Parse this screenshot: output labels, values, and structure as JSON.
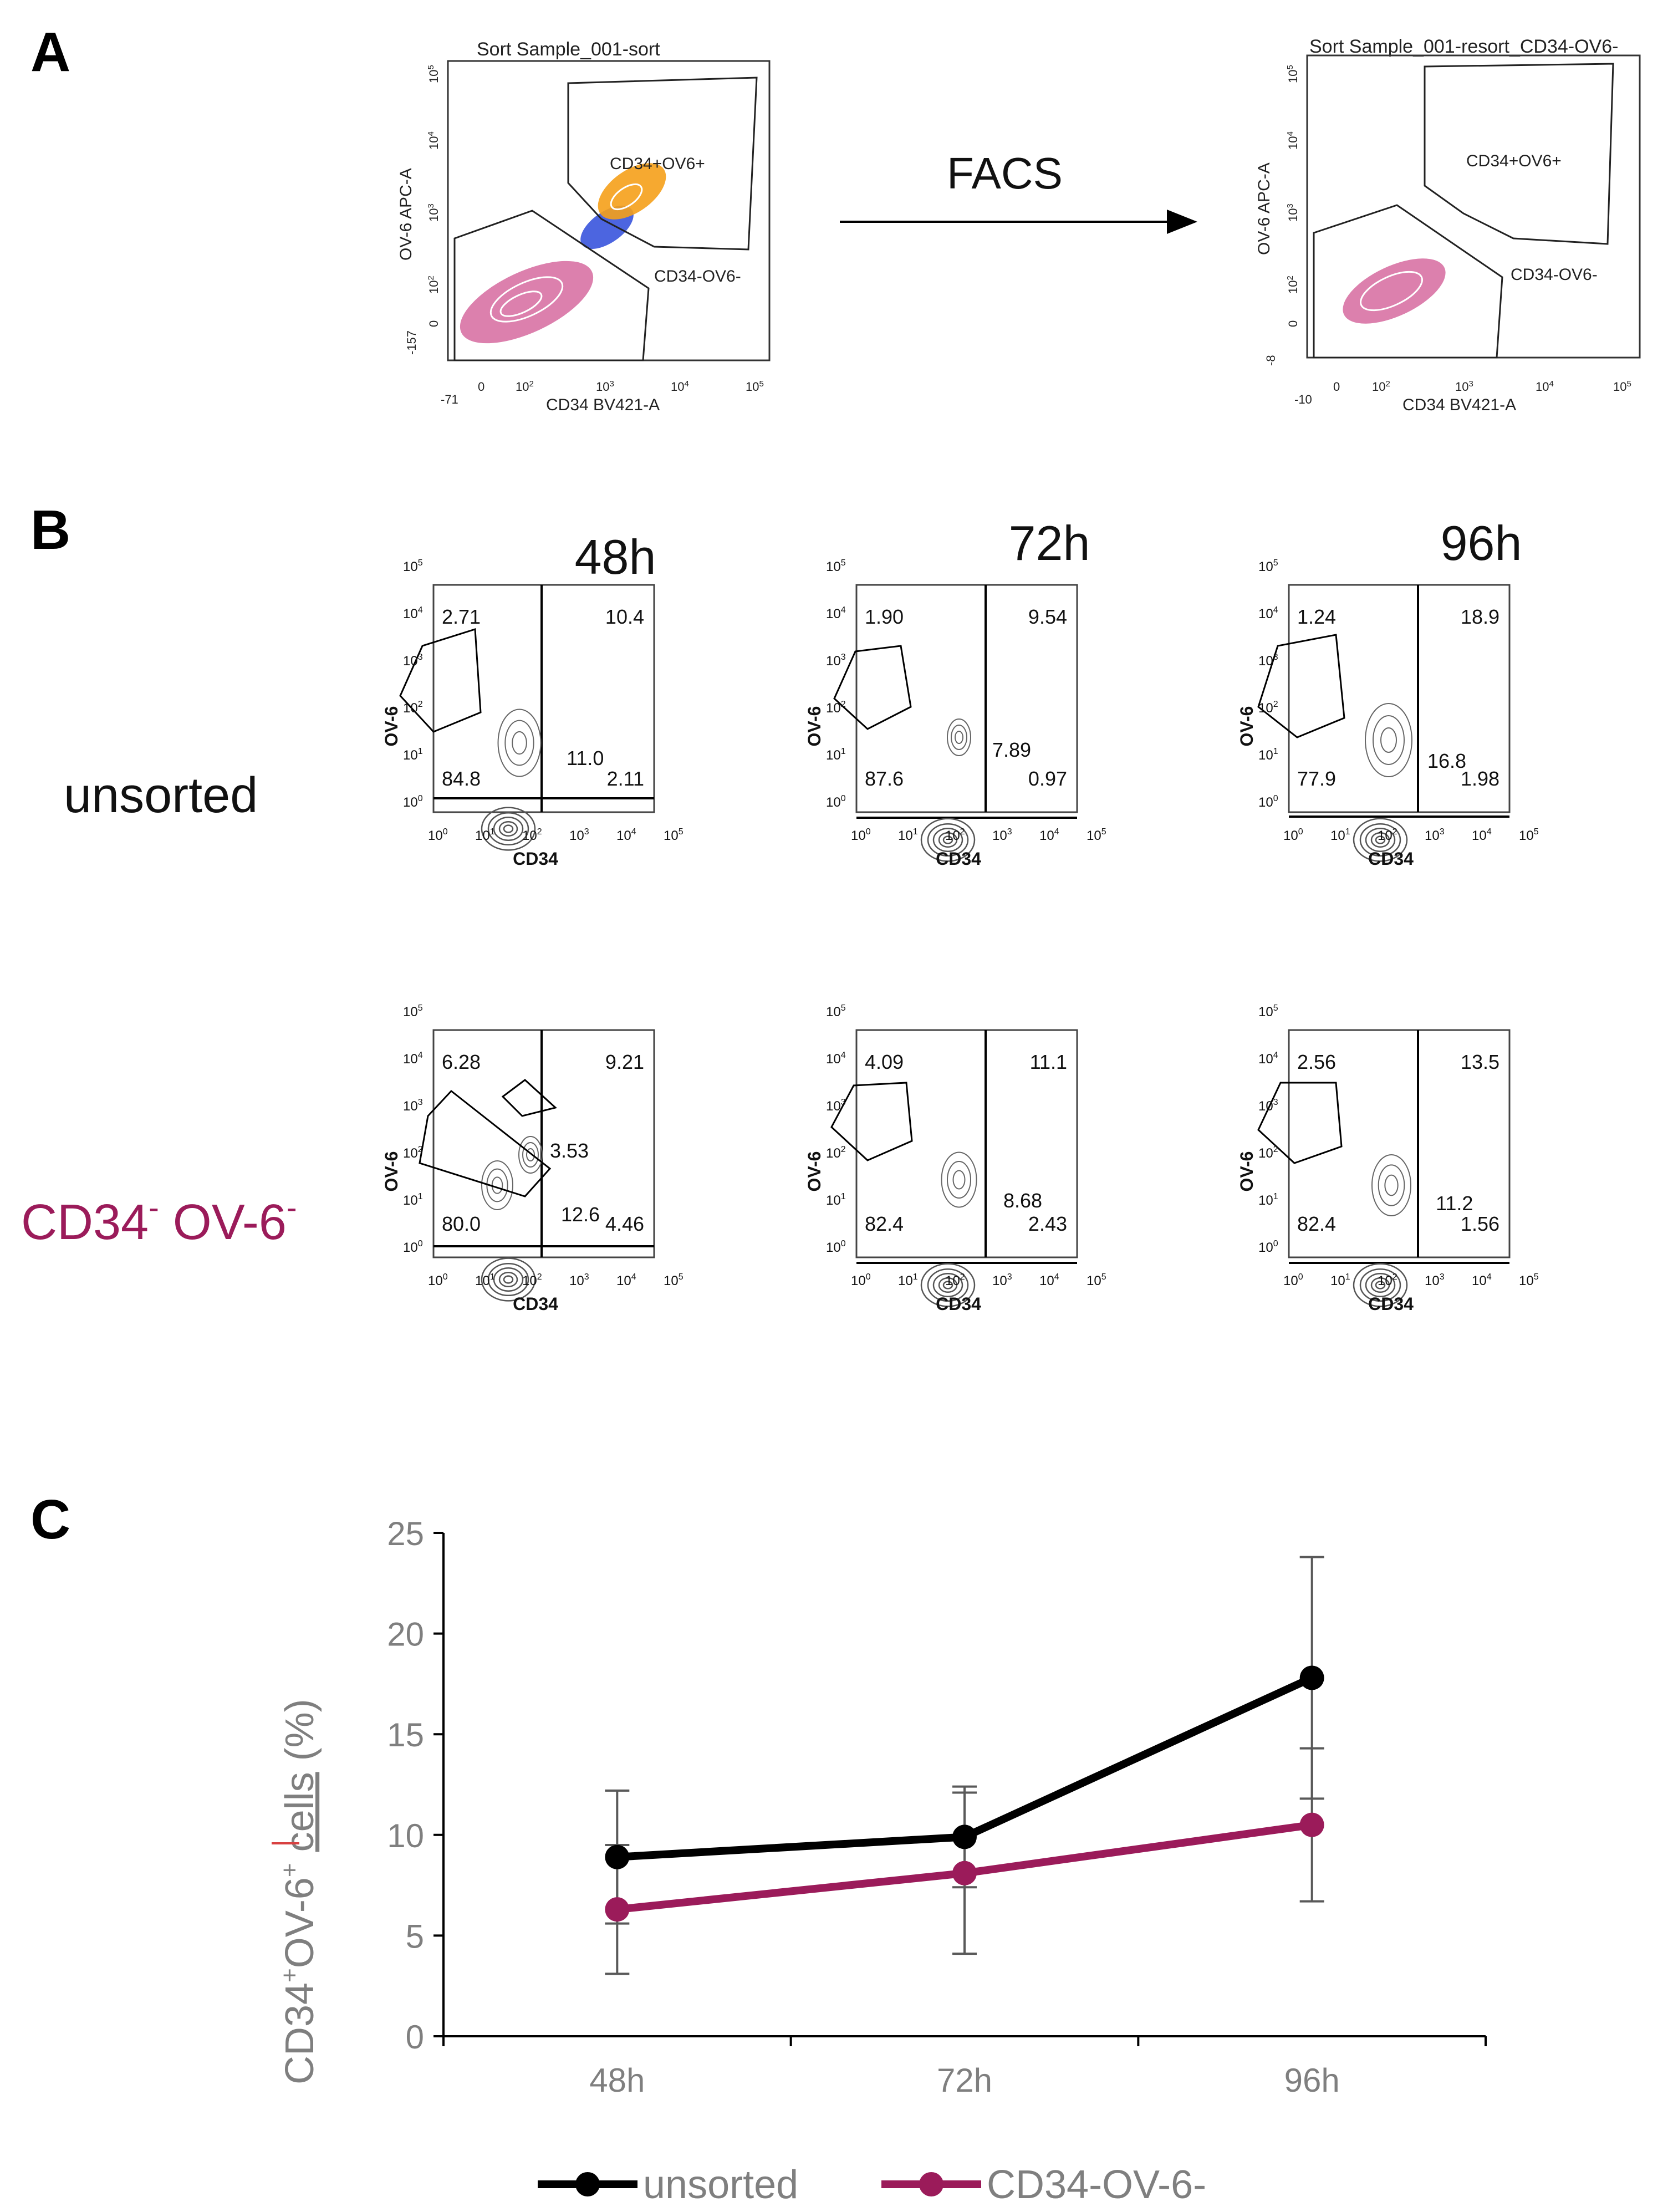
{
  "panel_a": {
    "letter": "A",
    "left_plot": {
      "title": "Sort Sample_001-sort",
      "y_label": "OV-6 APC-A",
      "x_label": "CD34 BV421-A",
      "gate_pos": "CD34+OV6+",
      "gate_neg": "CD34-OV6-",
      "x_ticks": [
        "-71",
        "0",
        "10",
        "10",
        "10",
        "10"
      ],
      "x_exps": [
        "",
        "",
        "2",
        "3",
        "4",
        "5"
      ],
      "y_ticks": [
        "-157",
        "0",
        "10",
        "10",
        "10",
        "10"
      ],
      "y_exps": [
        "",
        "",
        "2",
        "3",
        "4",
        "5"
      ]
    },
    "arrow_label": "FACS",
    "right_plot": {
      "title": "Sort Sample_001-resort_CD34-OV6-",
      "y_label": "OV-6 APC-A",
      "x_label": "CD34 BV421-A",
      "gate_pos": "CD34+OV6+",
      "gate_neg": "CD34-OV6-",
      "x_ticks": [
        "-10",
        "0",
        "10",
        "10",
        "10",
        "10"
      ],
      "x_exps": [
        "",
        "",
        "2",
        "3",
        "4",
        "5"
      ],
      "y_ticks": [
        "-8",
        "0",
        "10",
        "10",
        "10",
        "10"
      ],
      "y_exps": [
        "",
        "",
        "2",
        "3",
        "4",
        "5"
      ]
    }
  },
  "panel_b": {
    "letter": "B",
    "columns": [
      "48h",
      "72h",
      "96h"
    ],
    "rows": [
      "unsorted",
      "CD34",
      "OV-6"
    ],
    "row2_sup": "-",
    "x_axis": "CD34",
    "y_axis": "OV-6",
    "tick_base": "10",
    "tick_exps": [
      "0",
      "1",
      "2",
      "3",
      "4",
      "5"
    ],
    "plots": [
      {
        "row": 0,
        "col": 0,
        "ul": "2.71",
        "ur": "10.4",
        "ll": "84.8",
        "lr": "2.11",
        "gate": "11.0"
      },
      {
        "row": 0,
        "col": 1,
        "ul": "1.90",
        "ur": "9.54",
        "ll": "87.6",
        "lr": "0.97",
        "gate": "7.89"
      },
      {
        "row": 0,
        "col": 2,
        "ul": "1.24",
        "ur": "18.9",
        "ll": "77.9",
        "lr": "1.98",
        "gate": "16.8"
      },
      {
        "row": 1,
        "col": 0,
        "ul": "6.28",
        "ur": "9.21",
        "ll": "80.0",
        "lr": "4.46",
        "gate": "3.53",
        "gate2": "12.6"
      },
      {
        "row": 1,
        "col": 1,
        "ul": "4.09",
        "ur": "11.1",
        "ll": "82.4",
        "lr": "2.43",
        "gate": "8.68"
      },
      {
        "row": 1,
        "col": 2,
        "ul": "2.56",
        "ur": "13.5",
        "ll": "82.4",
        "lr": "1.56",
        "gate": "11.2"
      }
    ]
  },
  "panel_c": {
    "letter": "C",
    "y_label_parts": [
      "CD34",
      "+",
      "OV-6",
      "+",
      " ",
      "cells",
      " (%)"
    ]
  },
  "colors": {
    "unsorted": "#000000",
    "sorted": "#9b1b5a",
    "error_bar": "#595959",
    "axis": "#000000",
    "tick_text": "#7f7f7f",
    "scatter_pos": "#f5a01a",
    "scatter_mid": "#1f3fd8",
    "scatter_neg": "#c0186a"
  },
  "chart_data": {
    "type": "line",
    "categories": [
      "48h",
      "72h",
      "96h"
    ],
    "series": [
      {
        "name": "unsorted",
        "values": [
          8.9,
          9.9,
          17.8
        ],
        "error": [
          3.3,
          2.5,
          6.0
        ]
      },
      {
        "name": "CD34-OV-6-",
        "values": [
          6.3,
          8.1,
          10.5
        ],
        "error": [
          3.2,
          4.0,
          3.8
        ]
      }
    ],
    "ylim": [
      0,
      25
    ],
    "yticks": [
      0,
      5,
      10,
      15,
      20,
      25
    ],
    "xlabel": "",
    "ylabel": "CD34+OV-6+ cells (%)",
    "legend": "bottom",
    "grid": false
  }
}
